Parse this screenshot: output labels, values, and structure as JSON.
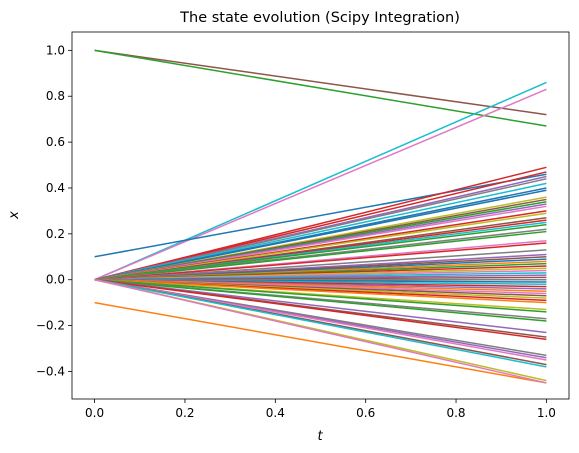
{
  "chart_data": {
    "type": "line",
    "title": "The state evolution (Scipy Integration)",
    "xlabel": "t",
    "ylabel": "x",
    "xlim": [
      -0.05,
      1.05
    ],
    "ylim": [
      -0.52,
      1.08
    ],
    "xticks": [
      0.0,
      0.2,
      0.4,
      0.6,
      0.8,
      1.0
    ],
    "xtick_labels": [
      "0.0",
      "0.2",
      "0.4",
      "0.6",
      "0.8",
      "1.0"
    ],
    "yticks": [
      -0.4,
      -0.2,
      0.0,
      0.2,
      0.4,
      0.6,
      0.8,
      1.0
    ],
    "ytick_labels": [
      "−0.4",
      "−0.2",
      "0.0",
      "0.2",
      "0.4",
      "0.6",
      "0.8",
      "1.0"
    ],
    "grid": false,
    "legend": "none",
    "series": [
      {
        "color": "#8c564b",
        "x": [
          0,
          1
        ],
        "y": [
          1.0,
          0.72
        ]
      },
      {
        "color": "#2ca02c",
        "x": [
          0,
          1
        ],
        "y": [
          1.0,
          0.67
        ]
      },
      {
        "color": "#17becf",
        "x": [
          0,
          1
        ],
        "y": [
          0.0,
          0.86
        ]
      },
      {
        "color": "#e377c2",
        "x": [
          0,
          1
        ],
        "y": [
          0.0,
          0.83
        ]
      },
      {
        "color": "#1f77b4",
        "x": [
          0,
          1
        ],
        "y": [
          0.1,
          0.46
        ]
      },
      {
        "color": "#ff7f0e",
        "x": [
          0,
          1
        ],
        "y": [
          -0.1,
          -0.45
        ]
      },
      {
        "color": "#d62728",
        "x": [
          0,
          1
        ],
        "y": [
          0.0,
          0.49
        ]
      },
      {
        "color": "#d62728",
        "x": [
          0,
          1
        ],
        "y": [
          0.0,
          0.47
        ]
      },
      {
        "color": "#9467bd",
        "x": [
          0,
          1
        ],
        "y": [
          0.0,
          0.45
        ]
      },
      {
        "color": "#7f7f7f",
        "x": [
          0,
          1
        ],
        "y": [
          0.0,
          0.44
        ]
      },
      {
        "color": "#17becf",
        "x": [
          0,
          1
        ],
        "y": [
          0.0,
          0.42
        ]
      },
      {
        "color": "#1f77b4",
        "x": [
          0,
          1
        ],
        "y": [
          0.0,
          0.4
        ]
      },
      {
        "color": "#1f77b4",
        "x": [
          0,
          1
        ],
        "y": [
          0.0,
          0.39
        ]
      },
      {
        "color": "#bcbd22",
        "x": [
          0,
          1
        ],
        "y": [
          0.0,
          0.36
        ]
      },
      {
        "color": "#8c564b",
        "x": [
          0,
          1
        ],
        "y": [
          0.0,
          0.35
        ]
      },
      {
        "color": "#2ca02c",
        "x": [
          0,
          1
        ],
        "y": [
          0.0,
          0.34
        ]
      },
      {
        "color": "#9467bd",
        "x": [
          0,
          1
        ],
        "y": [
          0.0,
          0.33
        ]
      },
      {
        "color": "#e377c2",
        "x": [
          0,
          1
        ],
        "y": [
          0.0,
          0.32
        ]
      },
      {
        "color": "#d62728",
        "x": [
          0,
          1
        ],
        "y": [
          0.0,
          0.3
        ]
      },
      {
        "color": "#bcbd22",
        "x": [
          0,
          1
        ],
        "y": [
          0.0,
          0.29
        ]
      },
      {
        "color": "#8c564b",
        "x": [
          0,
          1
        ],
        "y": [
          0.0,
          0.27
        ]
      },
      {
        "color": "#d62728",
        "x": [
          0,
          1
        ],
        "y": [
          0.0,
          0.26
        ]
      },
      {
        "color": "#17becf",
        "x": [
          0,
          1
        ],
        "y": [
          0.0,
          0.25
        ]
      },
      {
        "color": "#2ca02c",
        "x": [
          0,
          1
        ],
        "y": [
          0.0,
          0.24
        ]
      },
      {
        "color": "#7f7f7f",
        "x": [
          0,
          1
        ],
        "y": [
          0.0,
          0.22
        ]
      },
      {
        "color": "#2ca02c",
        "x": [
          0,
          1
        ],
        "y": [
          0.0,
          0.21
        ]
      },
      {
        "color": "#e377c2",
        "x": [
          0,
          1
        ],
        "y": [
          0.0,
          0.17
        ]
      },
      {
        "color": "#d62728",
        "x": [
          0,
          1
        ],
        "y": [
          0.0,
          0.16
        ]
      },
      {
        "color": "#7f7f7f",
        "x": [
          0,
          1
        ],
        "y": [
          0.0,
          0.13
        ]
      },
      {
        "color": "#9467bd",
        "x": [
          0,
          1
        ],
        "y": [
          0.0,
          0.11
        ]
      },
      {
        "color": "#8c564b",
        "x": [
          0,
          1
        ],
        "y": [
          0.0,
          0.1
        ]
      },
      {
        "color": "#1f77b4",
        "x": [
          0,
          1
        ],
        "y": [
          0.0,
          0.09
        ]
      },
      {
        "color": "#ff7f0e",
        "x": [
          0,
          1
        ],
        "y": [
          0.0,
          0.08
        ]
      },
      {
        "color": "#2ca02c",
        "x": [
          0,
          1
        ],
        "y": [
          0.0,
          0.07
        ]
      },
      {
        "color": "#d62728",
        "x": [
          0,
          1
        ],
        "y": [
          0.0,
          0.06
        ]
      },
      {
        "color": "#bcbd22",
        "x": [
          0,
          1
        ],
        "y": [
          0.0,
          0.05
        ]
      },
      {
        "color": "#e377c2",
        "x": [
          0,
          1
        ],
        "y": [
          0.0,
          0.04
        ]
      },
      {
        "color": "#17becf",
        "x": [
          0,
          1
        ],
        "y": [
          0.0,
          0.03
        ]
      },
      {
        "color": "#9467bd",
        "x": [
          0,
          1
        ],
        "y": [
          0.0,
          0.02
        ]
      },
      {
        "color": "#8c564b",
        "x": [
          0,
          1
        ],
        "y": [
          0.0,
          0.01
        ]
      },
      {
        "color": "#7f7f7f",
        "x": [
          0,
          1
        ],
        "y": [
          0.0,
          0.0
        ]
      },
      {
        "color": "#1f77b4",
        "x": [
          0,
          1
        ],
        "y": [
          0.0,
          -0.01
        ]
      },
      {
        "color": "#17becf",
        "x": [
          0,
          1
        ],
        "y": [
          0.0,
          -0.02
        ]
      },
      {
        "color": "#d62728",
        "x": [
          0,
          1
        ],
        "y": [
          0.0,
          -0.03
        ]
      },
      {
        "color": "#9467bd",
        "x": [
          0,
          1
        ],
        "y": [
          0.0,
          -0.04
        ]
      },
      {
        "color": "#ff7f0e",
        "x": [
          0,
          1
        ],
        "y": [
          0.0,
          -0.05
        ]
      },
      {
        "color": "#e377c2",
        "x": [
          0,
          1
        ],
        "y": [
          0.0,
          -0.06
        ]
      },
      {
        "color": "#8c564b",
        "x": [
          0,
          1
        ],
        "y": [
          0.0,
          -0.07
        ]
      },
      {
        "color": "#bcbd22",
        "x": [
          0,
          1
        ],
        "y": [
          0.0,
          -0.08
        ]
      },
      {
        "color": "#d62728",
        "x": [
          0,
          1
        ],
        "y": [
          0.0,
          -0.09
        ]
      },
      {
        "color": "#ff7f0e",
        "x": [
          0,
          1
        ],
        "y": [
          0.0,
          -0.1
        ]
      },
      {
        "color": "#bcbd22",
        "x": [
          0,
          1
        ],
        "y": [
          0.0,
          -0.13
        ]
      },
      {
        "color": "#2ca02c",
        "x": [
          0,
          1
        ],
        "y": [
          0.0,
          -0.14
        ]
      },
      {
        "color": "#7f7f7f",
        "x": [
          0,
          1
        ],
        "y": [
          0.0,
          -0.17
        ]
      },
      {
        "color": "#2ca02c",
        "x": [
          0,
          1
        ],
        "y": [
          0.0,
          -0.18
        ]
      },
      {
        "color": "#9467bd",
        "x": [
          0,
          1
        ],
        "y": [
          0.0,
          -0.23
        ]
      },
      {
        "color": "#8c564b",
        "x": [
          0,
          1
        ],
        "y": [
          0.0,
          -0.25
        ]
      },
      {
        "color": "#d62728",
        "x": [
          0,
          1
        ],
        "y": [
          0.0,
          -0.26
        ]
      },
      {
        "color": "#7f7f7f",
        "x": [
          0,
          1
        ],
        "y": [
          0.0,
          -0.33
        ]
      },
      {
        "color": "#9467bd",
        "x": [
          0,
          1
        ],
        "y": [
          0.0,
          -0.34
        ]
      },
      {
        "color": "#e377c2",
        "x": [
          0,
          1
        ],
        "y": [
          0.0,
          -0.35
        ]
      },
      {
        "color": "#8c564b",
        "x": [
          0,
          1
        ],
        "y": [
          0.0,
          -0.37
        ]
      },
      {
        "color": "#17becf",
        "x": [
          0,
          1
        ],
        "y": [
          0.0,
          -0.38
        ]
      },
      {
        "color": "#bcbd22",
        "x": [
          0,
          1
        ],
        "y": [
          0.0,
          -0.44
        ]
      },
      {
        "color": "#e377c2",
        "x": [
          0,
          1
        ],
        "y": [
          0.0,
          -0.45
        ]
      }
    ]
  }
}
